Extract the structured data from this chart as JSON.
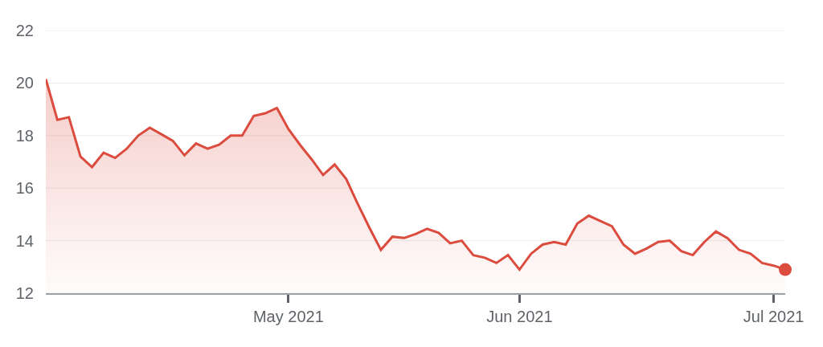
{
  "chart_data": {
    "type": "area",
    "categories": [
      null,
      null,
      null,
      null,
      null,
      null,
      null,
      null,
      null,
      null,
      null,
      null,
      null,
      null,
      null,
      null,
      null,
      null,
      null,
      null,
      null,
      "May 2021",
      null,
      null,
      null,
      null,
      null,
      null,
      null,
      null,
      null,
      null,
      null,
      null,
      null,
      null,
      null,
      null,
      null,
      null,
      null,
      "Jun 2021",
      null,
      null,
      null,
      null,
      null,
      null,
      null,
      null,
      null,
      null,
      null,
      null,
      null,
      null,
      null,
      null,
      null,
      null,
      null,
      null,
      null,
      "Jul 2021",
      null
    ],
    "series": [
      {
        "color": "#db4c3f",
        "values": [
          20.15,
          18.6,
          18.7,
          17.2,
          16.8,
          17.35,
          17.15,
          17.5,
          18.0,
          18.3,
          18.05,
          17.8,
          17.25,
          17.7,
          17.5,
          17.65,
          18.0,
          18.0,
          18.75,
          18.85,
          19.05,
          18.25,
          17.65,
          17.1,
          16.5,
          16.9,
          16.35,
          15.4,
          14.5,
          13.65,
          14.15,
          14.1,
          14.25,
          14.45,
          14.3,
          13.9,
          14.0,
          13.45,
          13.35,
          13.15,
          13.45,
          12.9,
          13.5,
          13.85,
          13.95,
          13.85,
          14.65,
          14.95,
          14.75,
          14.55,
          13.85,
          13.5,
          13.7,
          13.95,
          14.0,
          13.6,
          13.45,
          13.95,
          14.35,
          14.1,
          13.65,
          13.5,
          13.15,
          13.05,
          12.9
        ]
      },
      {
        "type": "scatter",
        "marker": "circle",
        "color": "#db4c3f",
        "values": [
          null,
          null,
          null,
          null,
          null,
          null,
          null,
          null,
          null,
          null,
          null,
          null,
          null,
          null,
          null,
          null,
          null,
          null,
          null,
          null,
          null,
          null,
          null,
          null,
          null,
          null,
          null,
          null,
          null,
          null,
          null,
          null,
          null,
          null,
          null,
          null,
          null,
          null,
          null,
          null,
          null,
          null,
          null,
          null,
          null,
          null,
          null,
          null,
          null,
          null,
          null,
          null,
          null,
          null,
          null,
          null,
          null,
          null,
          null,
          null,
          null,
          null,
          null,
          null,
          12.9
        ]
      }
    ],
    "ylim": [
      12,
      22
    ],
    "yticks": [
      12,
      14,
      16,
      18,
      20,
      22
    ],
    "grid": "y",
    "legend": false
  }
}
